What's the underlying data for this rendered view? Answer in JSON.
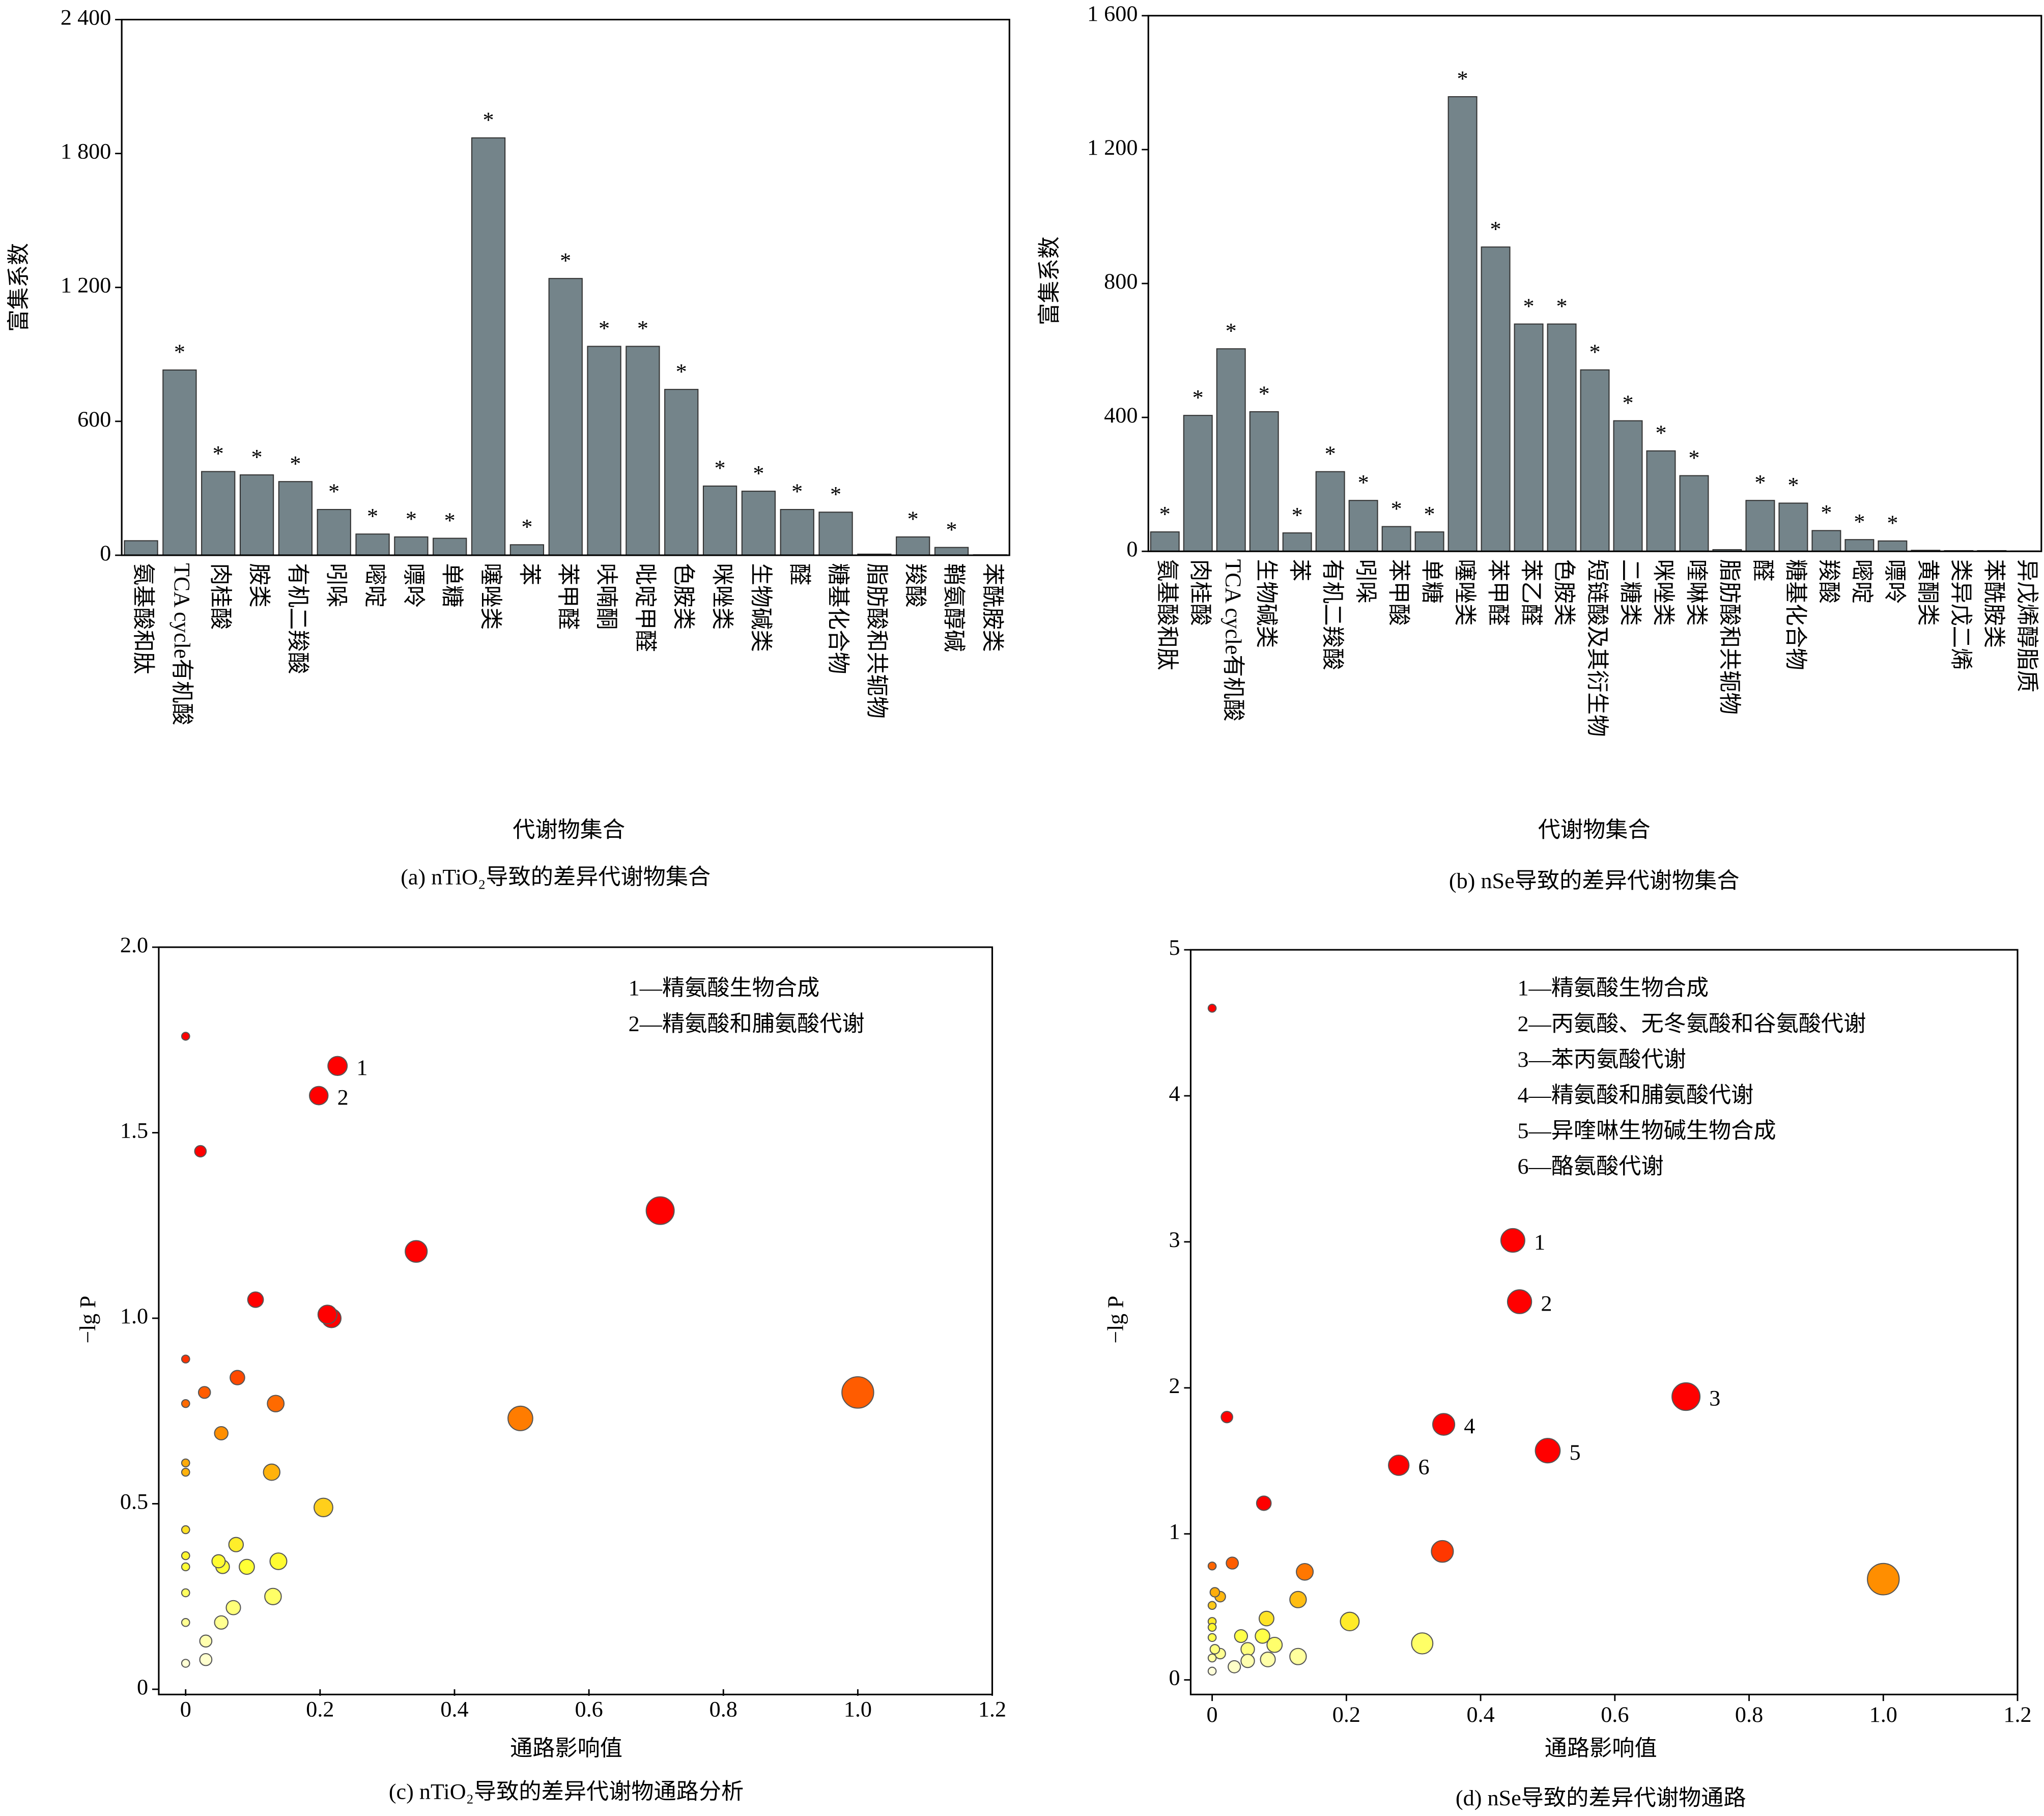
{
  "chart_data": [
    {
      "type": "bar",
      "caption": "(a) nTiO₂导致的差异代谢物集合",
      "x_label": "代谢物集合",
      "y_label": "富集系数",
      "color": "#74848a",
      "categories": [
        "氨基酸和肽",
        "TCA cycle有机酸",
        "肉桂酸",
        "胺类",
        "有机二羧酸",
        "吲哚",
        "嘧啶",
        "嘌呤",
        "单糖",
        "噻唑类",
        "苯",
        "苯甲醛",
        "呋喃酮",
        "吡啶甲醛",
        "色胺类",
        "咪唑类",
        "生物碱类",
        "醛",
        "糖基化合物",
        "脂肪酸和共轭物",
        "羧酸",
        "鞘氨醇碱",
        "苯酰胺类"
      ],
      "values": [
        65,
        830,
        375,
        360,
        330,
        205,
        95,
        82,
        76,
        1870,
        47,
        1240,
        936,
        936,
        743,
        310,
        287,
        205,
        193,
        5,
        82,
        35,
        2
      ],
      "significance": [
        null,
        "*",
        "*",
        "*",
        "*",
        "*",
        "*",
        "*",
        "*",
        "*",
        "*",
        "*",
        "*",
        "*",
        "*",
        "*",
        "*",
        "*",
        "*",
        null,
        "*",
        "*",
        null
      ],
      "ylim": [
        0,
        2400
      ],
      "yticks": [
        0,
        600,
        {
          "value": 1200,
          "label": "1 200"
        },
        {
          "value": 1800,
          "label": "1 800"
        },
        {
          "value": 2400,
          "label": "2 400"
        }
      ]
    },
    {
      "type": "bar",
      "caption": "(b) nSe导致的差异代谢物集合",
      "x_label": "代谢物集合",
      "y_label": "富集系数",
      "color": "#74848a",
      "categories": [
        "氨基酸和肽",
        "肉桂酸",
        "TCA cycle有机酸",
        "生物碱类",
        "苯",
        "有机二羧酸",
        "吲哚",
        "苯甲酸",
        "单糖",
        "噻唑类",
        "苯甲醛",
        "苯乙醛",
        "色胺类",
        "短链酸及其衍生物",
        "二糖类",
        "咪唑类",
        "喹啉类",
        "脂肪酸和共轭物",
        "醛",
        "糖基化合物",
        "羧酸",
        "嘧啶",
        "嘌呤",
        "黄酮类",
        "类异戊二烯",
        "苯酰胺类",
        "异戊烯醇脂质"
      ],
      "values": [
        58,
        406,
        605,
        417,
        55,
        238,
        152,
        74,
        58,
        1358,
        909,
        679,
        679,
        542,
        390,
        300,
        226,
        5,
        152,
        144,
        62,
        35,
        31,
        3,
        2,
        2,
        1
      ],
      "significance": [
        "*",
        "*",
        "*",
        "*",
        "*",
        "*",
        "*",
        "*",
        "*",
        "*",
        "*",
        "*",
        "*",
        "*",
        "*",
        "*",
        "*",
        null,
        "*",
        "*",
        "*",
        "*",
        "*",
        null,
        null,
        null,
        null
      ],
      "ylim": [
        0,
        1600
      ],
      "yticks": [
        0,
        400,
        800,
        {
          "value": 1200,
          "label": "1 200"
        },
        {
          "value": 1600,
          "label": "1 600"
        }
      ]
    },
    {
      "type": "scatter",
      "caption": "(c) nTiO₂导致的差异代谢物通路分析",
      "x_label": "通路影响值",
      "y_label": "−lg P",
      "notes": [
        "1—精氨酸生物合成",
        "2—精氨酸和脯氨酸代谢"
      ],
      "colormap": [
        "#ffffff",
        "#ffff33",
        "#ff9900",
        "#ff0000"
      ],
      "color_range": [
        0,
        1
      ],
      "x": [
        0,
        0.226,
        0.198,
        0.022,
        0.706,
        0.343,
        0.104,
        0.211,
        0.217,
        0,
        0.077,
        0.028,
        1.0,
        0,
        0.134,
        0.498,
        0.053,
        0,
        0,
        0.128,
        0.205,
        0,
        0.075,
        0,
        0.049,
        0.138,
        0.055,
        0.091,
        0,
        0,
        0.13,
        0.071,
        0.053,
        0,
        0.03,
        0.03,
        0
      ],
      "values": [
        1.76,
        1.68,
        1.6,
        1.45,
        1.29,
        1.18,
        1.05,
        1.01,
        1.0,
        0.89,
        0.84,
        0.8,
        0.8,
        0.77,
        0.77,
        0.73,
        0.69,
        0.61,
        0.585,
        0.585,
        0.49,
        0.43,
        0.39,
        0.36,
        0.345,
        0.345,
        0.33,
        0.33,
        0.33,
        0.26,
        0.25,
        0.22,
        0.18,
        0.18,
        0.13,
        0.08,
        0.07
      ],
      "point_labels": [
        null,
        "1",
        "2",
        null,
        null,
        null,
        null,
        null,
        null,
        null,
        null,
        null,
        null,
        null,
        null,
        null,
        null,
        null,
        null,
        null,
        null,
        null,
        null,
        null,
        null,
        null,
        null,
        null,
        null,
        null,
        null,
        null,
        null,
        null,
        null,
        null,
        null
      ],
      "xlim": [
        -0.04,
        1.2
      ],
      "xticks": [
        0,
        0.2,
        0.4,
        0.6,
        0.8,
        {
          "value": 1,
          "label": "1.0"
        },
        1.2
      ],
      "ylim": [
        0,
        2
      ],
      "yticks": [
        0,
        0.5,
        {
          "value": 1,
          "label": "1.0"
        },
        1.5,
        {
          "value": 2,
          "label": "2.0"
        }
      ]
    },
    {
      "type": "scatter",
      "caption": "(d) nSe导致的差异代谢物通路",
      "x_label": "通路影响值",
      "y_label": "−lg P",
      "notes": [
        "1—精氨酸生物合成",
        "2—丙氨酸、无冬氨酸和谷氨酸代谢",
        "3—苯丙氨酸代谢",
        "4—精氨酸和脯氨酸代谢",
        "5—异喹啉生物碱生物合成",
        "6—酪氨酸代谢"
      ],
      "colormap": [
        "#ffffff",
        "#ffff33",
        "#ff9900",
        "#ff0000"
      ],
      "color_range": [
        0,
        1
      ],
      "x": [
        0,
        0.448,
        0.458,
        0.706,
        0.022,
        0.345,
        0.5,
        0.278,
        0.077,
        0.343,
        0,
        0.03,
        0.138,
        1.0,
        0.004,
        0.012,
        0.128,
        0,
        0.081,
        0.205,
        0,
        0,
        0.043,
        0.075,
        0,
        0.313,
        0.093,
        0.053,
        0.004,
        0.012,
        0,
        0.053,
        0.083,
        0.128,
        0.033,
        0
      ],
      "values": [
        4.6,
        3.01,
        2.59,
        1.94,
        1.8,
        1.75,
        1.57,
        1.47,
        1.21,
        0.88,
        0.78,
        0.8,
        0.74,
        0.69,
        0.6,
        0.57,
        0.55,
        0.51,
        0.42,
        0.4,
        0.4,
        0.36,
        0.3,
        0.3,
        0.29,
        0.25,
        0.24,
        0.21,
        0.21,
        0.18,
        0.15,
        0.13,
        0.14,
        0.16,
        0.09,
        0.06
      ],
      "point_labels": [
        null,
        "1",
        "2",
        "3",
        null,
        "4",
        "5",
        "6",
        null,
        null,
        null,
        null,
        null,
        null,
        null,
        null,
        null,
        null,
        null,
        null,
        null,
        null,
        null,
        null,
        null,
        null,
        null,
        null,
        null,
        null,
        null,
        null,
        null,
        null,
        null,
        null
      ],
      "xlim": [
        -0.032,
        1.2
      ],
      "xticks": [
        0,
        0.2,
        0.4,
        0.6,
        0.8,
        {
          "value": 1,
          "label": "1.0"
        },
        1.2
      ],
      "ylim": [
        -0.1,
        5
      ],
      "yticks": [
        0,
        1,
        2,
        3,
        4,
        5
      ]
    }
  ]
}
